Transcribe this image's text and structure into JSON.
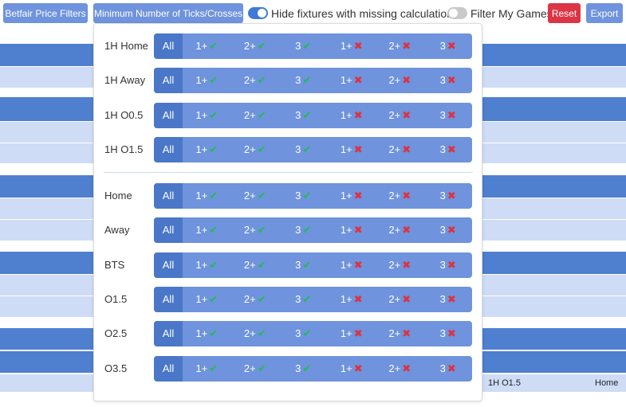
{
  "toolbar": {
    "betfair_label": "Betfair Price Filters",
    "ticks_label": "Minimum Number of Ticks/Crosses",
    "hide_label": "Hide fixtures with missing calculations",
    "hide_on": true,
    "filter_label": "Filter My Games",
    "filter_on": false,
    "reset_label": "Reset",
    "export_label": "Export"
  },
  "background": {
    "cell_market": "1H O1.5",
    "cell_side": "Home"
  },
  "options": {
    "all": "All",
    "o1": "1+",
    "o2": "2+",
    "o3": "3",
    "tick_symbol": "✔",
    "cross_symbol": "✖"
  },
  "rows": [
    {
      "label": "1H Home"
    },
    {
      "label": "1H Away"
    },
    {
      "label": "1H O0.5"
    },
    {
      "label": "1H O1.5"
    },
    {
      "label": "Home"
    },
    {
      "label": "Away"
    },
    {
      "label": "BTS"
    },
    {
      "label": "O1.5"
    },
    {
      "label": "O2.5"
    },
    {
      "label": "O3.5"
    }
  ],
  "colors": {
    "accent": "#6f93dc",
    "accent_dark": "#4a77c8",
    "danger": "#dc3545",
    "tick": "#22bb55",
    "cross": "#e0303f"
  }
}
